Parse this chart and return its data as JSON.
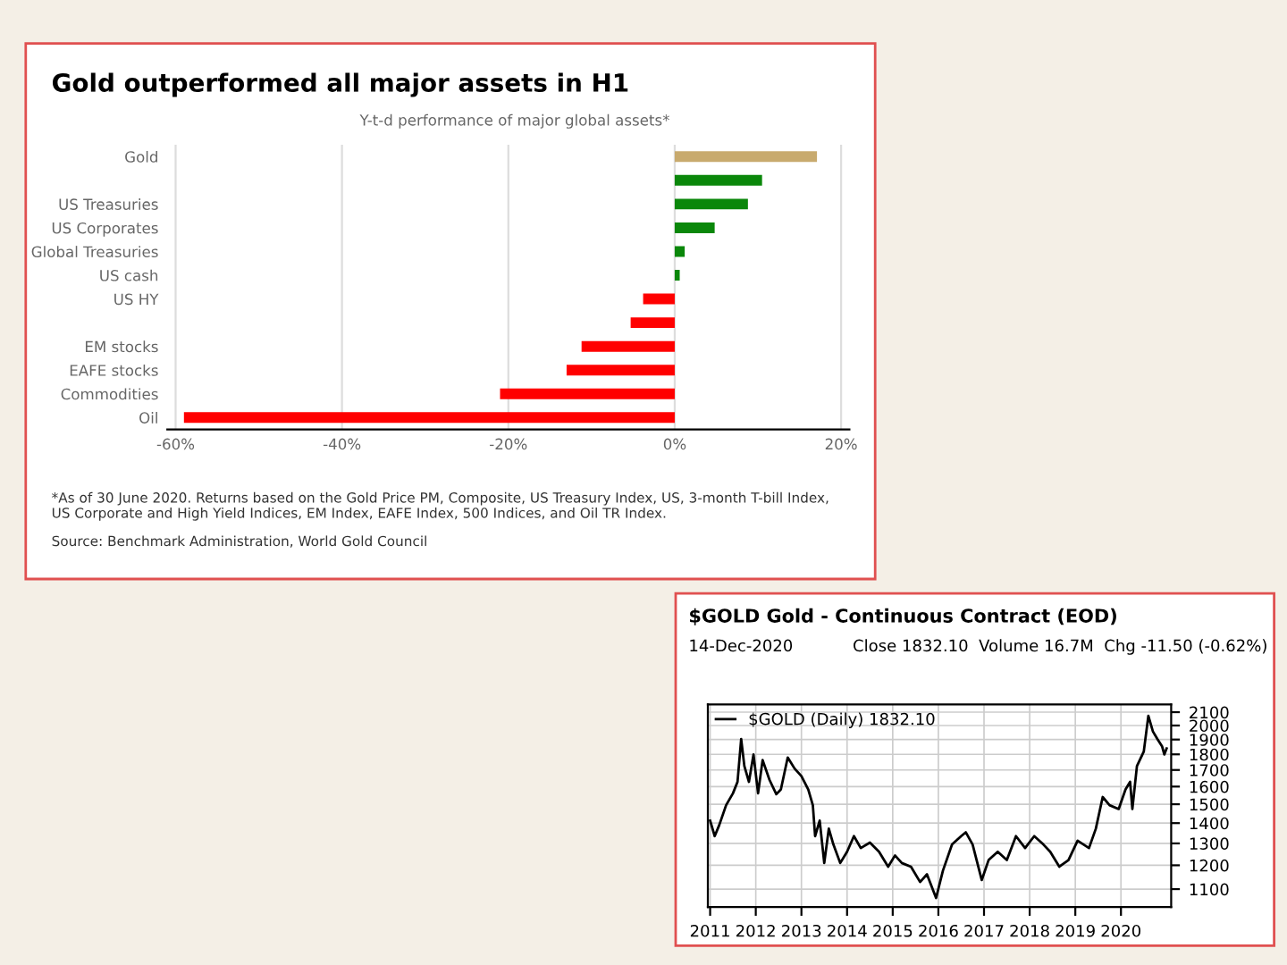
{
  "chart_data": [
    {
      "type": "bar",
      "orientation": "horizontal",
      "title": "Gold outperformed all major assets in H1",
      "subtitle": "Y-t-d performance of major global assets*",
      "categories": [
        "Gold",
        null,
        "US Treasuries",
        "US Corporates",
        "Global Treasuries",
        "US cash",
        "US HY",
        null,
        "EM stocks",
        "EAFE stocks",
        "Commodities",
        "Oil"
      ],
      "values": [
        17.1,
        10.5,
        8.8,
        4.8,
        1.2,
        0.6,
        -3.8,
        -5.3,
        -11.2,
        -13.0,
        -21.0,
        -59.0
      ],
      "colors": [
        "#c8aa6e",
        "#0a870a",
        "#0a870a",
        "#0a870a",
        "#0a870a",
        "#0a870a",
        "#ff0000",
        "#ff0000",
        "#ff0000",
        "#ff0000",
        "#ff0000",
        "#ff0000"
      ],
      "xlim": [
        -61,
        21
      ],
      "xticks": [
        {
          "value": -60,
          "label": "-60%"
        },
        {
          "value": -40,
          "label": "-40%"
        },
        {
          "value": -20,
          "label": "-20%"
        },
        {
          "value": 0,
          "label": "0%"
        },
        {
          "value": 20,
          "label": "20%"
        }
      ],
      "grid": "x",
      "annotations": [
        "*As of 30 June 2020. Returns based on the Gold Price PM, Composite, US Treasury Index, US, 3-month T-bill Index, US Corporate and High Yield Indices, EM Index, EAFE Index, 500 Indices, and Oil TR Index.",
        "Source: Benchmark Administration, World Gold Council"
      ]
    },
    {
      "type": "line",
      "title": "$GOLD Gold - Continuous Contract (EOD)",
      "subtitle": "14-Dec-2020",
      "annotations": [
        "Close 1832.10  Volume 16.7M  Chg -11.50 (-0.62%)"
      ],
      "log": "y",
      "grid": true,
      "legend": "top left",
      "line_style": "solid",
      "marker": "none",
      "x": [
        2011.0,
        2011.1,
        2011.2,
        2011.35,
        2011.5,
        2011.6,
        2011.68,
        2011.75,
        2011.85,
        2011.95,
        2012.05,
        2012.15,
        2012.3,
        2012.45,
        2012.55,
        2012.7,
        2012.85,
        2013.0,
        2013.15,
        2013.25,
        2013.3,
        2013.4,
        2013.5,
        2013.6,
        2013.7,
        2013.85,
        2014.0,
        2014.15,
        2014.3,
        2014.5,
        2014.7,
        2014.9,
        2015.05,
        2015.2,
        2015.4,
        2015.6,
        2015.75,
        2015.95,
        2016.1,
        2016.3,
        2016.5,
        2016.6,
        2016.75,
        2016.95,
        2017.1,
        2017.3,
        2017.5,
        2017.7,
        2017.9,
        2018.1,
        2018.3,
        2018.45,
        2018.65,
        2018.85,
        2019.05,
        2019.3,
        2019.45,
        2019.6,
        2019.75,
        2019.95,
        2020.1,
        2020.2,
        2020.25,
        2020.35,
        2020.5,
        2020.6,
        2020.7,
        2020.8,
        2020.9,
        2020.95,
        2021.0
      ],
      "series": [
        {
          "name": "$GOLD (Daily) 1832.10",
          "color": "#000000",
          "values": [
            1413,
            1335,
            1390,
            1495,
            1561,
            1628,
            1903,
            1724,
            1628,
            1799,
            1561,
            1763,
            1640,
            1556,
            1583,
            1779,
            1709,
            1662,
            1583,
            1495,
            1335,
            1413,
            1210,
            1372,
            1295,
            1210,
            1261,
            1335,
            1278,
            1304,
            1261,
            1194,
            1244,
            1210,
            1194,
            1129,
            1161,
            1065,
            1177,
            1295,
            1335,
            1354,
            1295,
            1137,
            1223,
            1261,
            1223,
            1335,
            1278,
            1335,
            1295,
            1261,
            1194,
            1223,
            1313,
            1278,
            1372,
            1540,
            1495,
            1474,
            1583,
            1628,
            1474,
            1724,
            1818,
            2072,
            1957,
            1903,
            1854,
            1799,
            1839
          ]
        }
      ],
      "xlim": [
        2010.95,
        2021.1
      ],
      "xticks": [
        2011,
        2012,
        2013,
        2014,
        2015,
        2016,
        2017,
        2018,
        2019,
        2020
      ],
      "ylim": [
        1030,
        2160
      ],
      "yticks": [
        1100,
        1200,
        1300,
        1400,
        1500,
        1600,
        1700,
        1800,
        1900,
        2000,
        2100
      ]
    }
  ]
}
